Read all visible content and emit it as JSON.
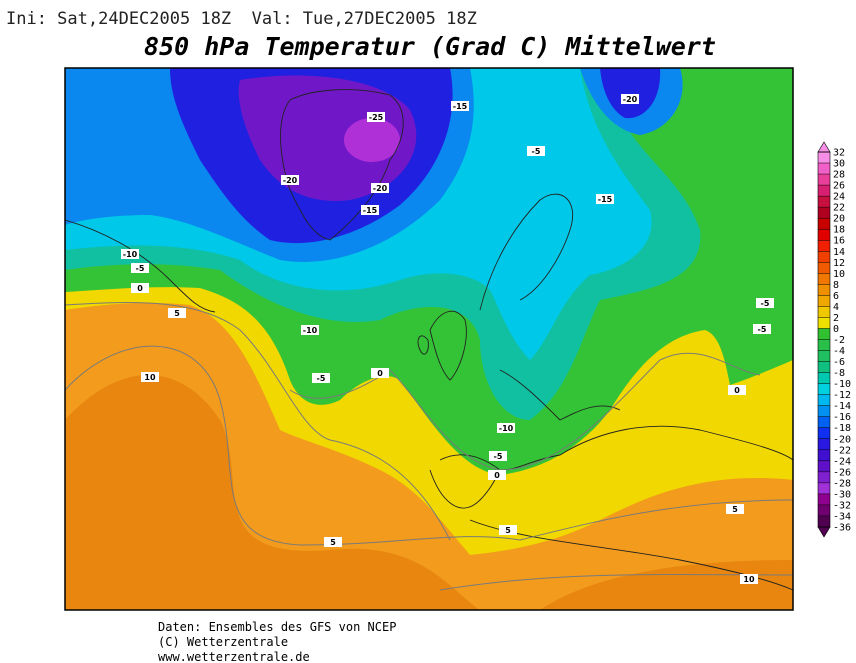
{
  "header": "Ini: Sat,24DEC2005 18Z  Val: Tue,27DEC2005 18Z",
  "title": "850 hPa Temperatur (Grad C) Mittelwert",
  "contour_labels": [
    -25,
    -15,
    -20,
    -5,
    -20,
    -20,
    -15,
    -15,
    -10,
    -5,
    0,
    5,
    -10,
    -5,
    -5,
    10,
    -5,
    0,
    -10,
    -5,
    0,
    0,
    5,
    5,
    5,
    10
  ],
  "colorbar": {
    "ticks": [
      32,
      30,
      28,
      26,
      24,
      22,
      20,
      18,
      16,
      14,
      12,
      10,
      8,
      6,
      4,
      2,
      0,
      -2,
      -4,
      -6,
      -8,
      -10,
      -12,
      -14,
      -16,
      -18,
      -20,
      -22,
      -24,
      -26,
      -28,
      -30,
      -32,
      -34,
      -36
    ],
    "colors": [
      "#f78ee6",
      "#f060c8",
      "#e8409a",
      "#d82070",
      "#c81040",
      "#b00020",
      "#c80000",
      "#e00000",
      "#f02000",
      "#f04000",
      "#f05a00",
      "#f07800",
      "#f09000",
      "#f0a800",
      "#f0c800",
      "#f0e000",
      "#30c030",
      "#28c048",
      "#20c060",
      "#10c080",
      "#00c8b0",
      "#00d0e0",
      "#00b8f0",
      "#0090f0",
      "#0060f0",
      "#1030f0",
      "#2818e0",
      "#4010d0",
      "#6010c8",
      "#8020d0",
      "#a030d8",
      "#900090",
      "#700070",
      "#500050"
    ]
  },
  "footer": [
    "Daten: Ensembles des GFS von NCEP",
    "(C) Wetterzentrale",
    "www.wetterzentrale.de"
  ]
}
